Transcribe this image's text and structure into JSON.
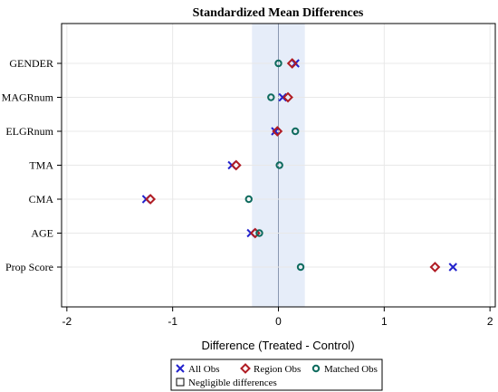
{
  "chart_data": {
    "type": "scatter",
    "title": "Standardized Mean Differences",
    "xlabel": "Difference (Treated - Control)",
    "ylabel": "",
    "xlim": [
      -2.05,
      2.05
    ],
    "xticks": [
      -2,
      -1,
      0,
      1,
      2
    ],
    "xtick_labels": [
      "-2",
      "-1",
      "0",
      "1",
      "2"
    ],
    "categories": [
      "GENDER",
      "MAGRnum",
      "ELGRnum",
      "TMA",
      "CMA",
      "AGE",
      "Prop Score"
    ],
    "negligible_band": [
      -0.25,
      0.25
    ],
    "grid": true,
    "legend_position": "bottom",
    "series": [
      {
        "name": "All Obs",
        "marker": "x",
        "color": "#2222cc",
        "values": [
          0.16,
          0.04,
          -0.03,
          -0.44,
          -1.25,
          -0.26,
          1.65
        ]
      },
      {
        "name": "Region Obs",
        "marker": "diamond",
        "color": "#b01c24",
        "values": [
          0.13,
          0.09,
          -0.01,
          -0.4,
          -1.21,
          -0.22,
          1.48
        ]
      },
      {
        "name": "Matched Obs",
        "marker": "circle",
        "color": "#0f6b5e",
        "values": [
          0.0,
          -0.07,
          0.16,
          0.01,
          -0.28,
          -0.18,
          0.21
        ]
      }
    ],
    "band_legend_label": "Negligible differences"
  },
  "colors": {
    "band": "#e6edf9",
    "grid": "#e8e8e8",
    "axis": "#000000"
  }
}
